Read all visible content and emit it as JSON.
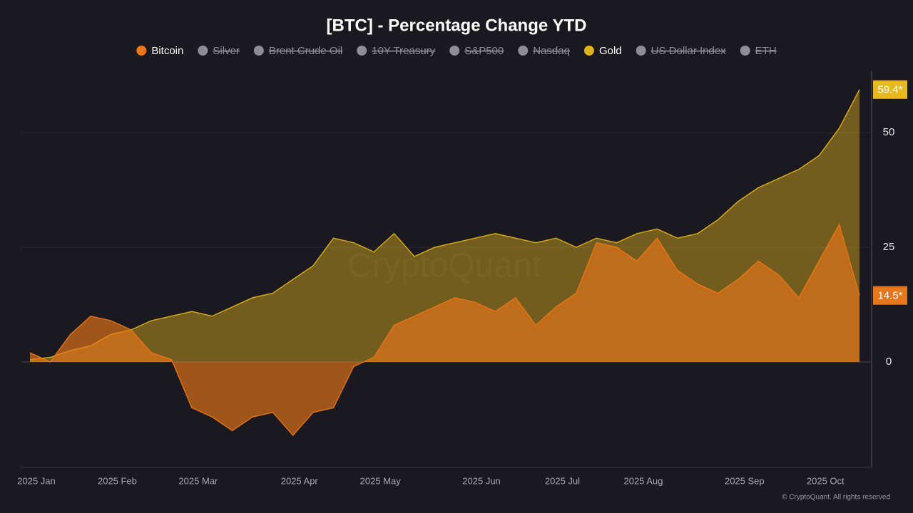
{
  "chart_data": {
    "type": "area",
    "title": "[BTC] - Percentage Change YTD",
    "watermark": "CryptoQuant",
    "credit": "© CryptoQuant. All rights reserved",
    "categories": [
      "2025 Jan",
      null,
      null,
      null,
      "2025 Feb",
      null,
      null,
      null,
      "2025 Mar",
      null,
      null,
      null,
      null,
      "2025 Apr",
      null,
      null,
      null,
      "2025 May",
      null,
      null,
      null,
      null,
      "2025 Jun",
      null,
      null,
      null,
      "2025 Jul",
      null,
      null,
      null,
      "2025 Aug",
      null,
      null,
      null,
      null,
      "2025 Sep",
      null,
      null,
      null,
      "2025 Oct",
      null,
      null
    ],
    "series": [
      {
        "name": "Bitcoin",
        "color": "#e8761a",
        "visible": true,
        "end_label": "14.5*",
        "values": [
          2,
          0,
          6,
          10,
          9,
          7,
          2,
          0.5,
          -10,
          -12,
          -15,
          -12,
          -11,
          -16,
          -11,
          -10,
          -1,
          1,
          8,
          10,
          12,
          14,
          13,
          11,
          14,
          8,
          12,
          15,
          26,
          25,
          22,
          27,
          20,
          17,
          15,
          18,
          22,
          19,
          14,
          22,
          30,
          14.5
        ]
      },
      {
        "name": "Silver",
        "color": "#8e8d96",
        "visible": false
      },
      {
        "name": "Brent Crude Oil",
        "color": "#8e8d96",
        "visible": false
      },
      {
        "name": "10Y Treasury",
        "color": "#8e8d96",
        "visible": false
      },
      {
        "name": "S&P500",
        "color": "#8e8d96",
        "visible": false
      },
      {
        "name": "Nasdaq",
        "color": "#8e8d96",
        "visible": false
      },
      {
        "name": "Gold",
        "color": "#e0b21c",
        "visible": true,
        "end_label": "59.4*",
        "values": [
          0.5,
          1,
          2.5,
          3.5,
          6,
          7,
          9,
          10,
          11,
          10,
          12,
          14,
          15,
          18,
          21,
          27,
          26,
          24,
          28,
          23,
          25,
          26,
          27,
          28,
          27,
          26,
          27,
          25,
          27,
          26,
          28,
          29,
          27,
          28,
          31,
          35,
          38,
          40,
          42,
          45,
          51,
          59.4
        ]
      },
      {
        "name": "US Dollar Index",
        "color": "#8e8d96",
        "visible": false
      },
      {
        "name": "ETH",
        "color": "#8e8d96",
        "visible": false
      }
    ],
    "ylim": [
      -23,
      63.4
    ],
    "yticks": [
      0,
      25,
      50
    ],
    "grid": true
  }
}
